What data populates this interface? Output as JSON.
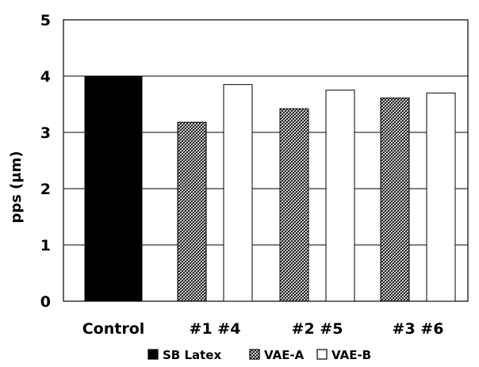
{
  "chart_data": {
    "type": "bar",
    "title": "",
    "xlabel": "",
    "ylabel": "pps (μm)",
    "ylim": [
      0,
      5
    ],
    "yticks": [
      "0",
      "1",
      "2",
      "3",
      "4",
      "5"
    ],
    "grid": true,
    "legend_position": "bottom",
    "categories": [
      {
        "label": "Control",
        "group_start": "SB Latex"
      },
      {
        "label": "#1 #4",
        "group_start": "VAE-A"
      },
      {
        "label": "#2 #5",
        "group_start": "VAE-A"
      },
      {
        "label": "#3 #6",
        "group_start": "VAE-A"
      }
    ],
    "series": [
      {
        "name": "SB Latex",
        "fill": "solid-black",
        "values": [
          4.0,
          null,
          null,
          null
        ]
      },
      {
        "name": "VAE-A",
        "fill": "crosshatch",
        "values": [
          null,
          3.18,
          3.42,
          3.61
        ]
      },
      {
        "name": "VAE-B",
        "fill": "white",
        "values": [
          null,
          3.85,
          3.75,
          3.7
        ]
      }
    ],
    "colors": {
      "solid": "#000000",
      "hatch_bg": "#ffffff",
      "hatch_line": "#000000",
      "white": "#ffffff"
    }
  }
}
